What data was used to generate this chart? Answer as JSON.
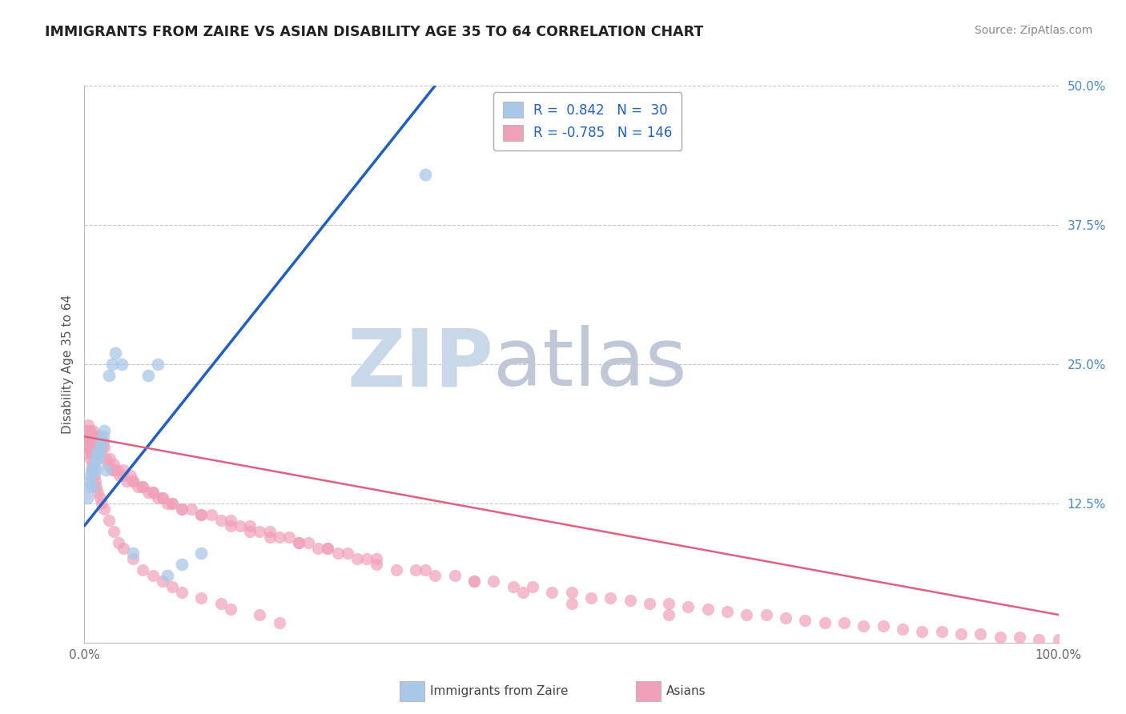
{
  "title": "IMMIGRANTS FROM ZAIRE VS ASIAN DISABILITY AGE 35 TO 64 CORRELATION CHART",
  "source": "Source: ZipAtlas.com",
  "ylabel": "Disability Age 35 to 64",
  "xlim": [
    0,
    1.0
  ],
  "ylim": [
    0,
    0.5
  ],
  "legend_r_blue": "0.842",
  "legend_n_blue": "30",
  "legend_r_pink": "-0.785",
  "legend_n_pink": "146",
  "blue_scatter_x": [
    0.003,
    0.004,
    0.005,
    0.006,
    0.007,
    0.008,
    0.009,
    0.01,
    0.011,
    0.012,
    0.013,
    0.014,
    0.015,
    0.016,
    0.017,
    0.018,
    0.019,
    0.02,
    0.022,
    0.025,
    0.028,
    0.032,
    0.038,
    0.05,
    0.065,
    0.075,
    0.085,
    0.1,
    0.12,
    0.35
  ],
  "blue_scatter_y": [
    0.13,
    0.14,
    0.145,
    0.15,
    0.155,
    0.14,
    0.155,
    0.16,
    0.155,
    0.165,
    0.17,
    0.165,
    0.17,
    0.175,
    0.18,
    0.18,
    0.185,
    0.19,
    0.155,
    0.24,
    0.25,
    0.26,
    0.25,
    0.08,
    0.24,
    0.25,
    0.06,
    0.07,
    0.08,
    0.42
  ],
  "pink_scatter_x": [
    0.001,
    0.002,
    0.003,
    0.004,
    0.004,
    0.005,
    0.006,
    0.007,
    0.008,
    0.009,
    0.01,
    0.011,
    0.012,
    0.013,
    0.014,
    0.015,
    0.016,
    0.017,
    0.018,
    0.019,
    0.02,
    0.022,
    0.024,
    0.026,
    0.028,
    0.03,
    0.033,
    0.036,
    0.04,
    0.043,
    0.047,
    0.05,
    0.055,
    0.06,
    0.065,
    0.07,
    0.075,
    0.08,
    0.085,
    0.09,
    0.1,
    0.11,
    0.12,
    0.13,
    0.14,
    0.15,
    0.16,
    0.17,
    0.18,
    0.19,
    0.2,
    0.21,
    0.22,
    0.23,
    0.24,
    0.25,
    0.26,
    0.27,
    0.28,
    0.29,
    0.3,
    0.32,
    0.34,
    0.36,
    0.38,
    0.4,
    0.42,
    0.44,
    0.46,
    0.48,
    0.5,
    0.52,
    0.54,
    0.56,
    0.58,
    0.6,
    0.62,
    0.64,
    0.66,
    0.68,
    0.7,
    0.72,
    0.74,
    0.76,
    0.78,
    0.8,
    0.82,
    0.84,
    0.86,
    0.88,
    0.9,
    0.92,
    0.94,
    0.96,
    0.98,
    1.0,
    0.002,
    0.003,
    0.004,
    0.005,
    0.006,
    0.007,
    0.008,
    0.009,
    0.01,
    0.011,
    0.012,
    0.014,
    0.016,
    0.018,
    0.02,
    0.025,
    0.03,
    0.035,
    0.04,
    0.05,
    0.06,
    0.07,
    0.08,
    0.09,
    0.1,
    0.12,
    0.14,
    0.15,
    0.18,
    0.2,
    0.03,
    0.04,
    0.05,
    0.06,
    0.07,
    0.08,
    0.09,
    0.1,
    0.12,
    0.15,
    0.17,
    0.19,
    0.22,
    0.25,
    0.3,
    0.35,
    0.4,
    0.45,
    0.5,
    0.6
  ],
  "pink_scatter_y": [
    0.19,
    0.185,
    0.18,
    0.195,
    0.175,
    0.19,
    0.185,
    0.18,
    0.185,
    0.19,
    0.185,
    0.175,
    0.18,
    0.185,
    0.18,
    0.175,
    0.185,
    0.18,
    0.175,
    0.18,
    0.175,
    0.165,
    0.16,
    0.165,
    0.155,
    0.16,
    0.155,
    0.15,
    0.155,
    0.145,
    0.15,
    0.145,
    0.14,
    0.14,
    0.135,
    0.135,
    0.13,
    0.13,
    0.125,
    0.125,
    0.12,
    0.12,
    0.115,
    0.115,
    0.11,
    0.11,
    0.105,
    0.105,
    0.1,
    0.1,
    0.095,
    0.095,
    0.09,
    0.09,
    0.085,
    0.085,
    0.08,
    0.08,
    0.075,
    0.075,
    0.07,
    0.065,
    0.065,
    0.06,
    0.06,
    0.055,
    0.055,
    0.05,
    0.05,
    0.045,
    0.045,
    0.04,
    0.04,
    0.038,
    0.035,
    0.035,
    0.032,
    0.03,
    0.028,
    0.025,
    0.025,
    0.022,
    0.02,
    0.018,
    0.018,
    0.015,
    0.015,
    0.012,
    0.01,
    0.01,
    0.008,
    0.008,
    0.005,
    0.005,
    0.003,
    0.003,
    0.17,
    0.18,
    0.19,
    0.175,
    0.165,
    0.17,
    0.16,
    0.155,
    0.15,
    0.145,
    0.14,
    0.135,
    0.13,
    0.125,
    0.12,
    0.11,
    0.1,
    0.09,
    0.085,
    0.075,
    0.065,
    0.06,
    0.055,
    0.05,
    0.045,
    0.04,
    0.035,
    0.03,
    0.025,
    0.018,
    0.155,
    0.15,
    0.145,
    0.14,
    0.135,
    0.13,
    0.125,
    0.12,
    0.115,
    0.105,
    0.1,
    0.095,
    0.09,
    0.085,
    0.075,
    0.065,
    0.055,
    0.045,
    0.035,
    0.025
  ],
  "blue_line_x": [
    0.0,
    0.36
  ],
  "blue_line_y": [
    0.105,
    0.5
  ],
  "pink_line_x": [
    0.0,
    1.0
  ],
  "pink_line_y": [
    0.185,
    0.025
  ],
  "scatter_color_blue": "#a8c8e8",
  "scatter_color_pink": "#f0a0b8",
  "line_color_blue": "#2060c0",
  "line_color_pink": "#e06080",
  "background_color": "#ffffff",
  "grid_color": "#c8c8c8",
  "watermark_zip": "ZIP",
  "watermark_atlas": "atlas",
  "watermark_color_zip": "#c8d8e8",
  "watermark_color_atlas": "#c0c8d8"
}
